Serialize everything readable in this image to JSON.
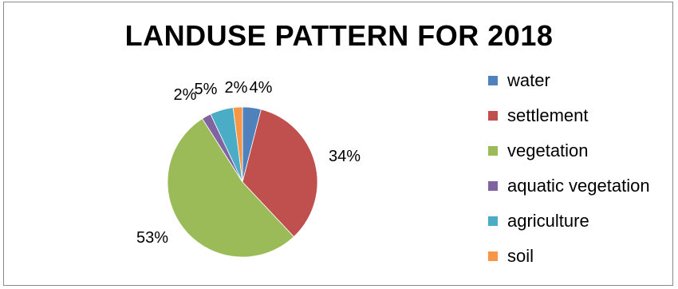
{
  "chart_data": {
    "type": "pie",
    "title": "LANDUSE PATTERN FOR 2018",
    "categories": [
      "water",
      "settlement",
      "vegetation",
      "aquatic vegetation",
      "agriculture",
      "soil"
    ],
    "values": [
      4,
      34,
      53,
      2,
      5,
      2
    ],
    "data_labels": [
      "4%",
      "34%",
      "53%",
      "2%",
      "5%",
      "2%"
    ],
    "colors": [
      "#4f81bd",
      "#c0504d",
      "#9bbb59",
      "#8064a2",
      "#4bacc6",
      "#f79646"
    ],
    "legend_position": "right"
  }
}
